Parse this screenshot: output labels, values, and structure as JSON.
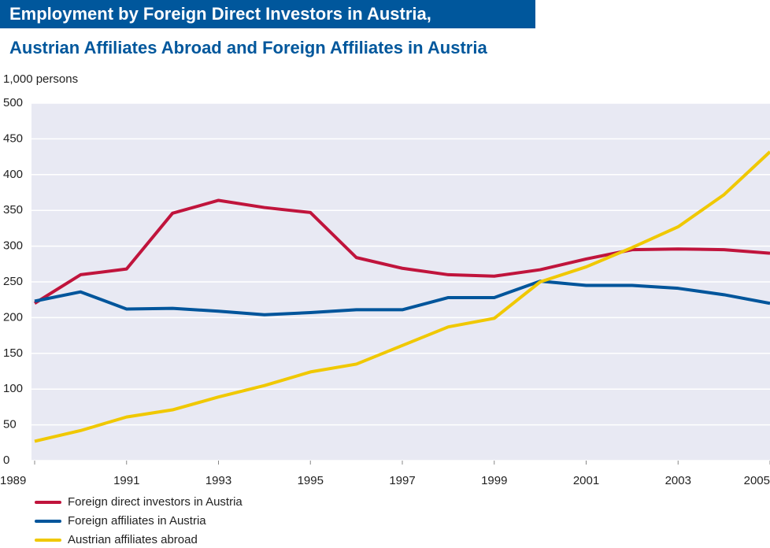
{
  "chart_data": {
    "type": "line",
    "title": "Employment by Foreign Direct Investors in Austria,",
    "subtitle": "Austrian Affiliates Abroad and Foreign Affiliates in Austria",
    "y_label": "1,000 persons",
    "x": [
      1989,
      1990,
      1991,
      1992,
      1993,
      1994,
      1995,
      1996,
      1997,
      1998,
      1999,
      2000,
      2001,
      2002,
      2003,
      2004,
      2005
    ],
    "series": [
      {
        "name": "Foreign direct investors in Austria",
        "color": "#c0143c",
        "values": [
          220,
          260,
          268,
          346,
          364,
          354,
          347,
          284,
          269,
          260,
          258,
          267,
          282,
          295,
          296,
          295,
          290
        ]
      },
      {
        "name": "Foreign affiliates in Austria",
        "color": "#00559b",
        "values": [
          223,
          236,
          212,
          213,
          209,
          204,
          207,
          211,
          211,
          228,
          228,
          251,
          245,
          245,
          241,
          232,
          220
        ]
      },
      {
        "name": "Austrian affiliates abroad",
        "color": "#f0c800",
        "values": [
          27,
          42,
          61,
          71,
          89,
          105,
          124,
          135,
          161,
          187,
          199,
          250,
          271,
          298,
          327,
          372,
          432
        ]
      }
    ],
    "xlim": [
      1989,
      2005
    ],
    "xticks": [
      1989,
      1991,
      1993,
      1995,
      1997,
      1999,
      2001,
      2003,
      2005
    ],
    "ylim": [
      0,
      500
    ],
    "yticks": [
      0,
      50,
      100,
      150,
      200,
      250,
      300,
      350,
      400,
      450,
      500
    ],
    "grid": true,
    "legend": "bottom"
  }
}
